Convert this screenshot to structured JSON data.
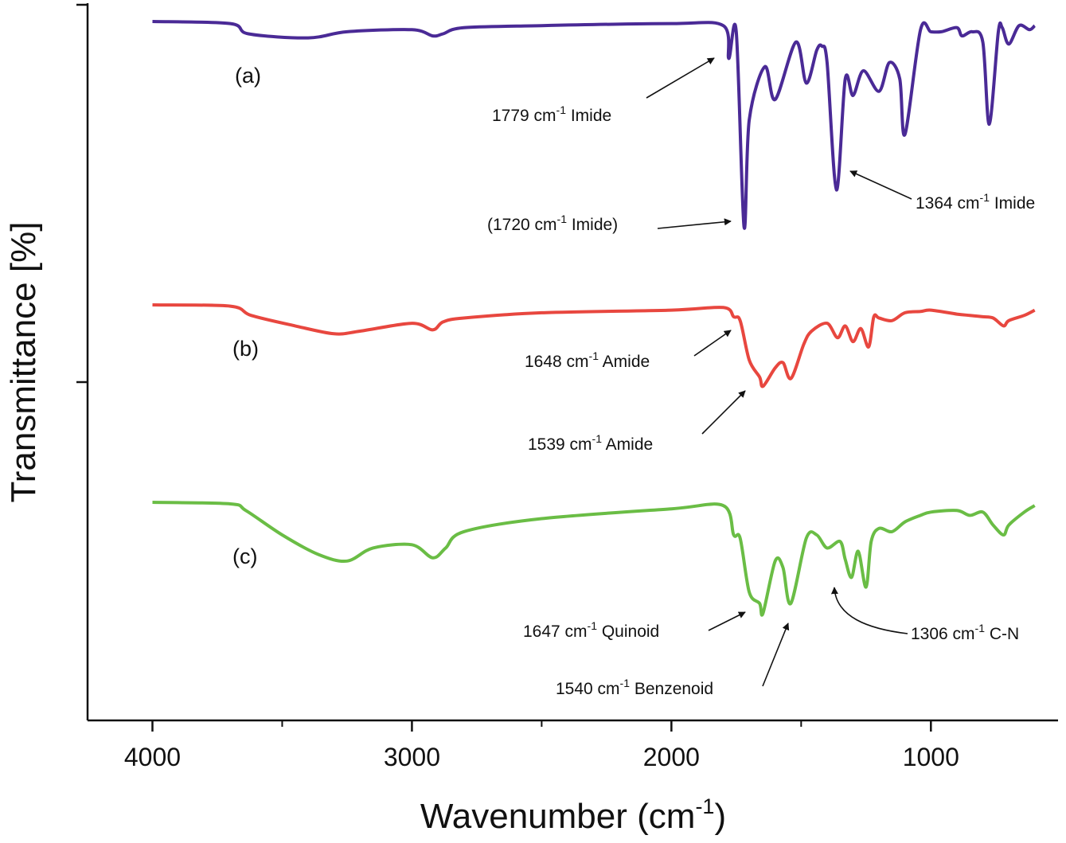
{
  "chart_data": {
    "type": "line",
    "xlabel": "Wavenumber (cm",
    "xlabel_sup": "-1",
    "xlabel_end": ")",
    "ylabel": "Transmittance [%]",
    "xlim": [
      4250,
      510
    ],
    "x_ticks": [
      4000,
      3000,
      2000,
      1000
    ],
    "x_tick_labels": [
      "4000",
      "3000",
      "2000",
      "1000"
    ],
    "grid": false,
    "series": [
      {
        "label": "(a)",
        "color": "#4a2a96",
        "x": [
          4000,
          3700,
          3630,
          3400,
          3250,
          3000,
          2920,
          2880,
          2800,
          2500,
          2000,
          1800,
          1779,
          1750,
          1720,
          1700,
          1640,
          1600,
          1520,
          1480,
          1440,
          1420,
          1400,
          1364,
          1330,
          1300,
          1260,
          1200,
          1160,
          1120,
          1100,
          1040,
          1000,
          960,
          900,
          880,
          840,
          800,
          775,
          740,
          725,
          700,
          660,
          620,
          600
        ],
        "y": [
          0.0,
          -0.01,
          -0.06,
          -0.08,
          -0.05,
          -0.04,
          -0.07,
          -0.06,
          -0.03,
          -0.02,
          -0.01,
          -0.02,
          -0.18,
          -0.05,
          -1.0,
          -0.48,
          -0.22,
          -0.38,
          -0.1,
          -0.3,
          -0.14,
          -0.12,
          -0.2,
          -0.82,
          -0.28,
          -0.36,
          -0.24,
          -0.34,
          -0.2,
          -0.28,
          -0.55,
          -0.04,
          -0.05,
          -0.05,
          -0.03,
          -0.07,
          -0.05,
          -0.1,
          -0.5,
          -0.05,
          -0.03,
          -0.11,
          -0.02,
          -0.04,
          -0.02
        ]
      },
      {
        "label": "(b)",
        "color": "#e8473f",
        "x": [
          4000,
          3700,
          3620,
          3450,
          3300,
          3200,
          3000,
          2920,
          2880,
          2800,
          2500,
          2000,
          1800,
          1760,
          1735,
          1700,
          1660,
          1647,
          1600,
          1570,
          1539,
          1490,
          1460,
          1400,
          1360,
          1330,
          1300,
          1270,
          1240,
          1220,
          1200,
          1150,
          1100,
          1040,
          1000,
          900,
          850,
          800,
          760,
          720,
          700,
          640,
          600
        ],
        "y": [
          0.0,
          -0.01,
          -0.08,
          -0.16,
          -0.22,
          -0.2,
          -0.14,
          -0.19,
          -0.13,
          -0.1,
          -0.06,
          -0.04,
          -0.02,
          -0.09,
          -0.12,
          -0.42,
          -0.55,
          -0.62,
          -0.48,
          -0.44,
          -0.56,
          -0.3,
          -0.2,
          -0.14,
          -0.25,
          -0.16,
          -0.28,
          -0.18,
          -0.32,
          -0.09,
          -0.1,
          -0.12,
          -0.06,
          -0.05,
          -0.04,
          -0.07,
          -0.08,
          -0.09,
          -0.1,
          -0.16,
          -0.12,
          -0.08,
          -0.04
        ]
      },
      {
        "label": "(c)",
        "color": "#6abd45",
        "x": [
          4000,
          3700,
          3640,
          3500,
          3360,
          3250,
          3150,
          3000,
          2920,
          2870,
          2800,
          2500,
          2000,
          1800,
          1760,
          1735,
          1700,
          1660,
          1647,
          1600,
          1570,
          1540,
          1480,
          1440,
          1400,
          1350,
          1330,
          1306,
          1280,
          1250,
          1230,
          1200,
          1150,
          1100,
          1040,
          1000,
          900,
          850,
          800,
          760,
          720,
          700,
          640,
          600
        ],
        "y": [
          0.0,
          -0.01,
          -0.05,
          -0.2,
          -0.32,
          -0.36,
          -0.28,
          -0.26,
          -0.34,
          -0.28,
          -0.18,
          -0.1,
          -0.04,
          -0.02,
          -0.2,
          -0.22,
          -0.55,
          -0.62,
          -0.68,
          -0.36,
          -0.4,
          -0.62,
          -0.22,
          -0.2,
          -0.28,
          -0.24,
          -0.35,
          -0.46,
          -0.3,
          -0.52,
          -0.24,
          -0.16,
          -0.18,
          -0.12,
          -0.08,
          -0.06,
          -0.05,
          -0.08,
          -0.06,
          -0.14,
          -0.2,
          -0.14,
          -0.06,
          -0.02
        ]
      }
    ],
    "annotations": [
      {
        "pre": "1779 cm",
        "sup": "-1",
        "post": " Imide"
      },
      {
        "pre": "(1720 cm",
        "sup": "-1",
        "post": " Imide)"
      },
      {
        "pre": "1364 cm",
        "sup": "-1",
        "post": " Imide"
      },
      {
        "pre": "1648 cm",
        "sup": "-1",
        "post": " Amide"
      },
      {
        "pre": "1539 cm",
        "sup": "-1",
        "post": " Amide"
      },
      {
        "pre": "1647 cm",
        "sup": "-1",
        "post": " Quinoid"
      },
      {
        "pre": "1540 cm",
        "sup": "-1",
        "post": " Benzenoid"
      },
      {
        "pre": "1306 cm",
        "sup": "-1",
        "post": " C-N"
      }
    ]
  }
}
